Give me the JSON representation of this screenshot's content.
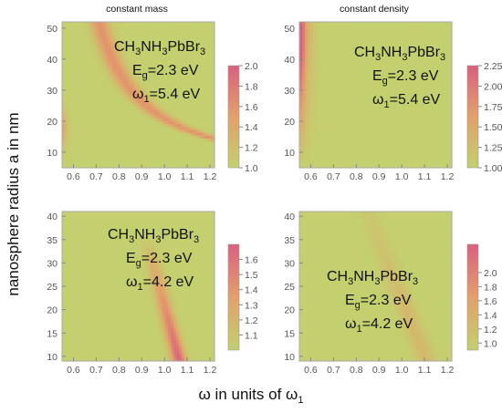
{
  "figure": {
    "y_axis_label": "nanosphere radius a in nm",
    "x_axis_label_main": "ω in units of ω",
    "x_axis_label_sub": "1"
  },
  "colors": {
    "low": "#c4d06f",
    "mid": "#e3a06a",
    "high": "#d9607f",
    "frame": "#aaaaaa"
  },
  "chart_data": [
    {
      "type": "heatmap",
      "panel": "top-left",
      "title": "constant mass",
      "annotation": {
        "formula": [
          "CH",
          "3",
          "NH",
          "3",
          "PbBr",
          "3"
        ],
        "eg": [
          "E",
          "g",
          "=2.3 eV"
        ],
        "w1": [
          "ω",
          "1",
          "=5.4 eV"
        ]
      },
      "xlim": [
        0.55,
        1.22
      ],
      "ylim": [
        5,
        52
      ],
      "xticks": [
        "0.6",
        "0.7",
        "0.8",
        "0.9",
        "1.0",
        "1.1",
        "1.2"
      ],
      "yticks": [
        "10",
        "20",
        "30",
        "40",
        "50"
      ],
      "colorbar": {
        "range": [
          1.0,
          2.0
        ],
        "ticks": [
          "2.0",
          "1.8",
          "1.6",
          "1.4",
          "1.2",
          "1.0"
        ]
      },
      "ridge": {
        "kind": "hyperbola",
        "k": 10,
        "width": 0.03,
        "peak": 0.6
      }
    },
    {
      "type": "heatmap",
      "panel": "top-right",
      "title": "constant density",
      "annotation": {
        "formula": [
          "CH",
          "3",
          "NH",
          "3",
          "PbBr",
          "3"
        ],
        "eg": [
          "E",
          "g",
          "=2.3 eV"
        ],
        "w1": [
          "ω",
          "1",
          "=5.4 eV"
        ]
      },
      "xlim": [
        0.55,
        1.22
      ],
      "ylim": [
        5,
        52
      ],
      "xticks": [
        "0.6",
        "0.7",
        "0.8",
        "0.9",
        "1.0",
        "1.1",
        "1.2"
      ],
      "yticks": [
        "10",
        "20",
        "30",
        "40",
        "50"
      ],
      "colorbar": {
        "range": [
          1.0,
          2.25
        ],
        "ticks": [
          "2.25",
          "2.00",
          "1.75",
          "1.50",
          "1.25",
          "1.00"
        ]
      },
      "ridge": {
        "kind": "edge",
        "peak": 0.6
      }
    },
    {
      "type": "heatmap",
      "panel": "bottom-left",
      "title": "",
      "annotation": {
        "formula": [
          "CH",
          "3",
          "NH",
          "3",
          "PbBr",
          "3"
        ],
        "eg": [
          "E",
          "g",
          "=2.3 eV"
        ],
        "w1": [
          "ω",
          "1",
          "=4.2 eV"
        ]
      },
      "xlim": [
        0.55,
        1.22
      ],
      "ylim": [
        9,
        41
      ],
      "xticks": [
        "0.6",
        "0.7",
        "0.8",
        "0.9",
        "1.0",
        "1.1",
        "1.2"
      ],
      "yticks": [
        "10",
        "15",
        "20",
        "25",
        "30",
        "35",
        "40"
      ],
      "colorbar": {
        "range": [
          1.0,
          1.7
        ],
        "ticks": [
          "1.6",
          "1.5",
          "1.4",
          "1.3",
          "1.2",
          "1.1"
        ]
      },
      "ridge": {
        "kind": "line",
        "x0": 0.95,
        "y0": 30,
        "x1": 1.06,
        "y1": 10,
        "width": 0.022,
        "peak": 0.95
      }
    },
    {
      "type": "heatmap",
      "panel": "bottom-right",
      "title": "",
      "annotation": {
        "formula": [
          "CH",
          "3",
          "NH",
          "3",
          "PbBr",
          "3"
        ],
        "eg": [
          "E",
          "g",
          "=2.3 eV"
        ],
        "w1": [
          "ω",
          "1",
          "=4.2 eV"
        ]
      },
      "xlim": [
        0.55,
        1.22
      ],
      "ylim": [
        9,
        41
      ],
      "xticks": [
        "0.6",
        "0.7",
        "0.8",
        "0.9",
        "1.0",
        "1.1",
        "1.2"
      ],
      "yticks": [
        "10",
        "15",
        "20",
        "25",
        "30",
        "35",
        "40"
      ],
      "colorbar": {
        "range": [
          0.9,
          2.4
        ],
        "ticks": [
          "2.0",
          "1.8",
          "1.6",
          "1.4",
          "1.2",
          "1.0"
        ]
      },
      "ridge": {
        "kind": "line",
        "x0": 0.85,
        "y0": 41,
        "x1": 1.02,
        "y1": 20,
        "width": 0.03,
        "peak": 0.25
      }
    }
  ]
}
